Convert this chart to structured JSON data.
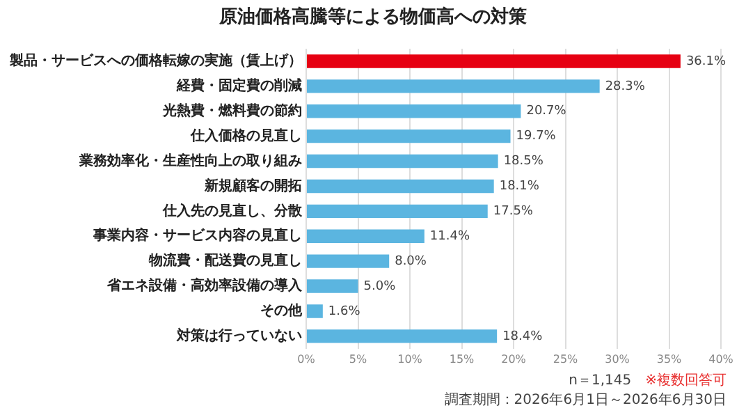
{
  "chart_data": {
    "type": "bar",
    "orientation": "horizontal",
    "title": "原油価格高騰等による物価高への対策",
    "categories": [
      "製品・サービスへの価格転嫁の実施（賃上げ）",
      "経費・固定費の削減",
      "光熱費・燃料費の節約",
      "仕入価格の見直し",
      "業務効率化・生産性向上の取り組み",
      "新規顧客の開拓",
      "仕入先の見直し、分散",
      "事業内容・サービス内容の見直し",
      "物流費・配送費の見直し",
      "省エネ設備・高効率設備の導入",
      "その他",
      "対策は行っていない"
    ],
    "values": [
      36.1,
      28.3,
      20.7,
      19.7,
      18.5,
      18.1,
      17.5,
      11.4,
      8.0,
      5.0,
      1.6,
      18.4
    ],
    "value_labels": [
      "36.1%",
      "28.3%",
      "20.7%",
      "19.7%",
      "18.5%",
      "18.1%",
      "17.5%",
      "11.4%",
      "8.0%",
      "5.0%",
      "1.6%",
      "18.4%"
    ],
    "colors": [
      "#e60012",
      "#5bb5e0",
      "#5bb5e0",
      "#5bb5e0",
      "#5bb5e0",
      "#5bb5e0",
      "#5bb5e0",
      "#5bb5e0",
      "#5bb5e0",
      "#5bb5e0",
      "#5bb5e0",
      "#5bb5e0"
    ],
    "xlim": [
      0,
      40
    ],
    "xticks": [
      {
        "value": 0,
        "label": "0%"
      },
      {
        "value": 5,
        "label": "5%"
      },
      {
        "value": 10,
        "label": "10%"
      },
      {
        "value": 15,
        "label": "15%"
      },
      {
        "value": 20,
        "label": "20%"
      },
      {
        "value": 25,
        "label": "25%"
      },
      {
        "value": 30,
        "label": "30%"
      },
      {
        "value": 35,
        "label": "35%"
      },
      {
        "value": 40,
        "label": "40%"
      }
    ],
    "grid": "x",
    "annotations": [
      "n＝1,145",
      "※複数回答可",
      "調査期間：2026年6月1日～2026年6月30日"
    ]
  }
}
